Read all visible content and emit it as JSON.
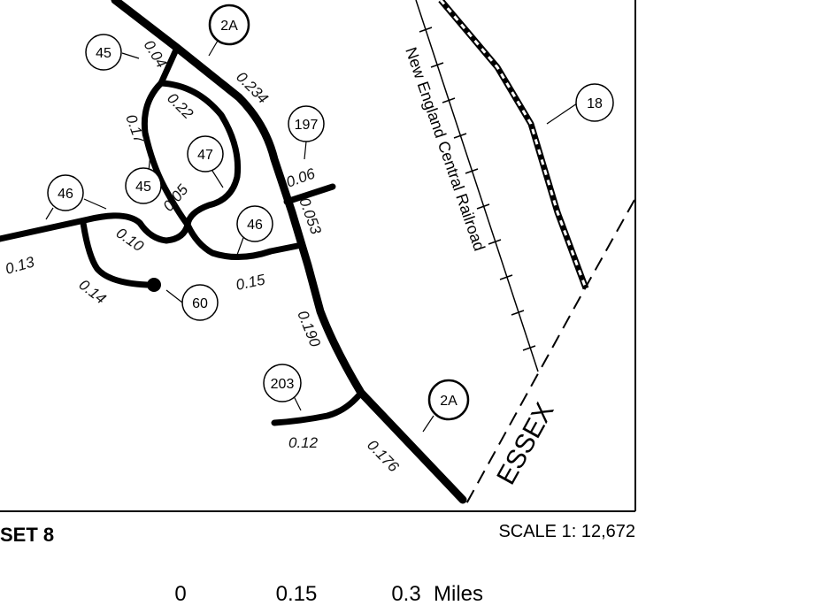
{
  "inset_label": "SET 8",
  "scale_text": "SCALE 1: 12,672",
  "town_label": "ESSEX",
  "railroad_label": "New England Central Railroad",
  "scale_bar": {
    "ticks": [
      "0",
      "0.15",
      "0.3"
    ],
    "unit": "Miles"
  },
  "route_shields": {
    "r2a_top": "2A",
    "r2a_bottom": "2A",
    "r45_top": "45",
    "r45_mid": "45",
    "r46_left": "46",
    "r46_mid": "46",
    "r47": "47",
    "r197": "197",
    "r18": "18",
    "r60": "60",
    "r203": "203"
  },
  "segment_lengths": {
    "s_0_04": "0.04",
    "s_0_234": "0.234",
    "s_0_22": "0.22",
    "s_0_17": "0.17",
    "s_0_06": "0.06",
    "s_0_05": "0.05",
    "s_0_053": "0.053",
    "s_0_10": "0.10",
    "s_0_13": "0.13",
    "s_0_14": "0.14",
    "s_0_15": "0.15",
    "s_0_190": "0.190",
    "s_0_12": "0.12",
    "s_0_176": "0.176"
  },
  "colors": {
    "road": "#000000",
    "background": "#ffffff"
  }
}
